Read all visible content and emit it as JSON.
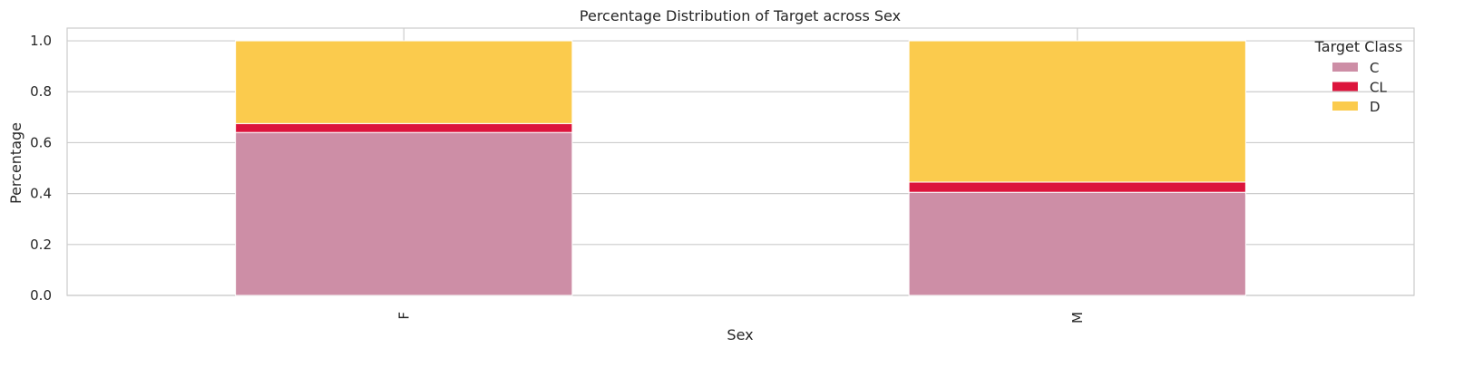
{
  "chart_data": {
    "type": "bar",
    "stacked": true,
    "title": "Percentage Distribution of Target across Sex",
    "xlabel": "Sex",
    "ylabel": "Percentage",
    "categories": [
      "F",
      "M"
    ],
    "ylim": [
      0,
      1.05
    ],
    "yticks": [
      "0.0",
      "0.2",
      "0.4",
      "0.6",
      "0.8",
      "1.0"
    ],
    "grid": true,
    "legend": {
      "title": "Target Class",
      "placement": "top-right"
    },
    "series": [
      {
        "name": "C",
        "color": "#cd8ea6",
        "values": [
          0.64,
          0.405
        ]
      },
      {
        "name": "CL",
        "color": "#dc143c",
        "values": [
          0.035,
          0.04
        ]
      },
      {
        "name": "D",
        "color": "#fbcb4d",
        "values": [
          0.325,
          0.555
        ]
      }
    ]
  }
}
